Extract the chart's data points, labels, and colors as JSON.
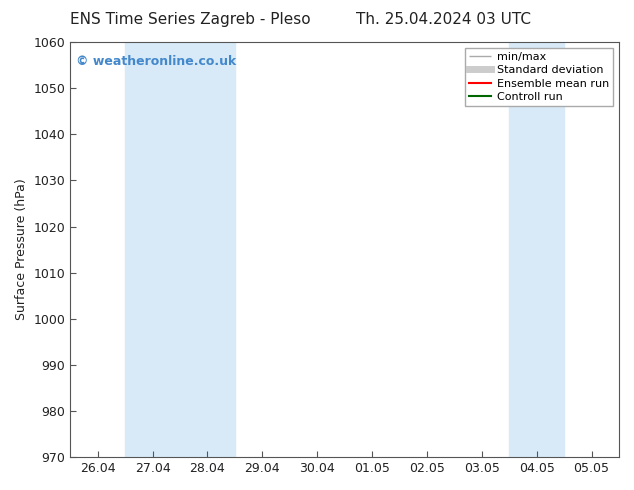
{
  "title_left": "ENS Time Series Zagreb - Pleso",
  "title_right": "Th. 25.04.2024 03 UTC",
  "ylabel": "Surface Pressure (hPa)",
  "ylim": [
    970,
    1060
  ],
  "yticks": [
    970,
    980,
    990,
    1000,
    1010,
    1020,
    1030,
    1040,
    1050,
    1060
  ],
  "xtick_labels": [
    "26.04",
    "27.04",
    "28.04",
    "29.04",
    "30.04",
    "01.05",
    "02.05",
    "03.05",
    "04.05",
    "05.05"
  ],
  "xtick_positions": [
    0,
    1,
    2,
    3,
    4,
    5,
    6,
    7,
    8,
    9
  ],
  "xlim": [
    -0.5,
    9.5
  ],
  "bg_color": "#ffffff",
  "plot_bg_color": "#ffffff",
  "shaded_bands": [
    {
      "x_start": 0.5,
      "x_end": 2.5
    },
    {
      "x_start": 7.5,
      "x_end": 8.5
    }
  ],
  "band_color": "#d8eaf8",
  "watermark_text": "© weatheronline.co.uk",
  "watermark_color": "#4488cc",
  "legend_items": [
    {
      "label": "min/max",
      "color": "#aaaaaa",
      "lw": 1.0
    },
    {
      "label": "Standard deviation",
      "color": "#cccccc",
      "lw": 5
    },
    {
      "label": "Ensemble mean run",
      "color": "#ff0000",
      "lw": 1.5
    },
    {
      "label": "Controll run",
      "color": "#006600",
      "lw": 1.5
    }
  ],
  "n_xticks": 10,
  "font_color": "#222222",
  "title_fontsize": 11,
  "axis_fontsize": 9,
  "tick_fontsize": 9,
  "legend_fontsize": 8
}
